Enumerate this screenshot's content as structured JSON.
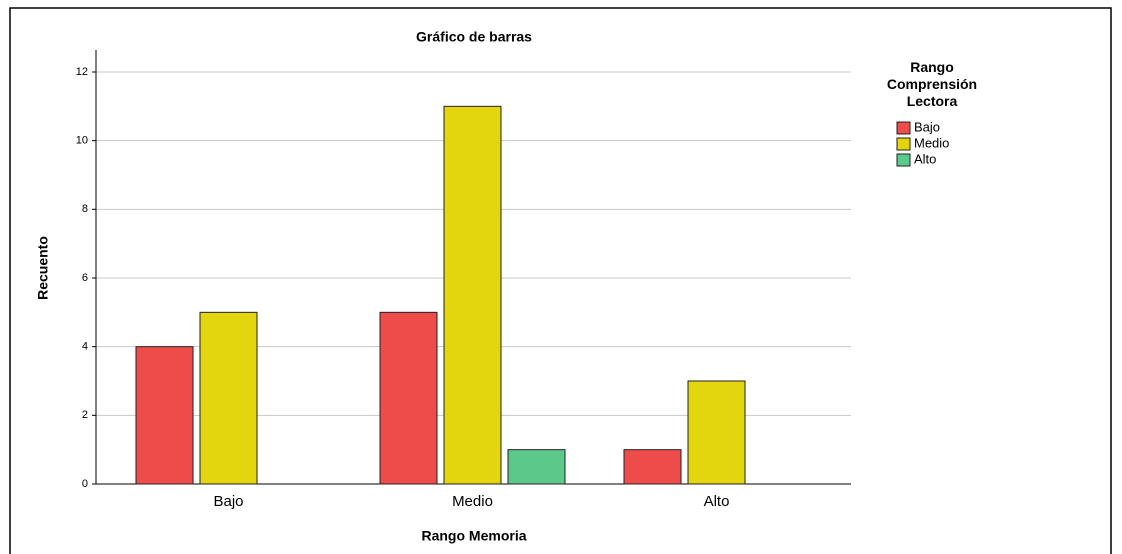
{
  "chart_data": {
    "type": "bar",
    "title": "Gráfico de barras",
    "x_label": "Rango Memoria",
    "y_label": "Recuento",
    "legend_title": "Rango Comprensión Lectora",
    "legend_position": "right",
    "categories": [
      "Bajo",
      "Medio",
      "Alto"
    ],
    "series": [
      {
        "name": "Bajo",
        "color": "#ee4b4b",
        "values": [
          4,
          5,
          1
        ]
      },
      {
        "name": "Medio",
        "color": "#e3d50e",
        "values": [
          5,
          11,
          3
        ]
      },
      {
        "name": "Alto",
        "color": "#5bc98a",
        "values": [
          0,
          1,
          0
        ]
      }
    ],
    "ylim": [
      0,
      12
    ],
    "yticks": [
      0,
      2,
      4,
      6,
      8,
      10,
      12
    ],
    "grid": true
  }
}
